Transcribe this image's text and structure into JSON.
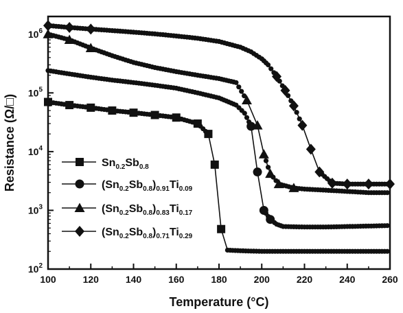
{
  "chart_data": {
    "type": "line",
    "xlabel": "Temperature (°C)",
    "ylabel": "Resistance (Ω/□)",
    "xlim": [
      100,
      260
    ],
    "ylim_log": [
      100,
      2000000
    ],
    "yscale": "log",
    "xticks": [
      100,
      120,
      140,
      160,
      180,
      200,
      220,
      240,
      260
    ],
    "xtick_labels": [
      "100",
      "120",
      "140",
      "160",
      "180",
      "200",
      "220",
      "240",
      "260"
    ],
    "yticks": [
      100,
      1000,
      10000,
      100000,
      1000000
    ],
    "ytick_labels": [
      {
        "base": "10",
        "exp": "2"
      },
      {
        "base": "10",
        "exp": "3"
      },
      {
        "base": "10",
        "exp": "4"
      },
      {
        "base": "10",
        "exp": "5"
      },
      {
        "base": "10",
        "exp": "6"
      }
    ],
    "grid": false,
    "legend_position": "left-bottom",
    "series": [
      {
        "name": "Sn0.2Sb0.8",
        "legend_parts": [
          {
            "t": "Sn"
          },
          {
            "t": "0.2",
            "sub": true
          },
          {
            "t": "Sb"
          },
          {
            "t": "0.8",
            "sub": true
          }
        ],
        "marker": "square",
        "x": [
          100,
          110,
          120,
          130,
          140,
          150,
          160,
          170,
          175,
          178,
          181,
          184,
          190,
          200,
          210,
          220,
          230,
          240,
          250,
          260
        ],
        "y": [
          70000,
          62000,
          56000,
          50000,
          46000,
          42000,
          38000,
          30000,
          20000,
          6000,
          480,
          210,
          205,
          200,
          200,
          200,
          200,
          200,
          200,
          200
        ],
        "marked_x": [
          100,
          110,
          120,
          130,
          140,
          150,
          160,
          170,
          175,
          178,
          181
        ]
      },
      {
        "name": "(Sn0.2Sb0.8)0.91Ti0.09",
        "legend_parts": [
          {
            "t": "(Sn"
          },
          {
            "t": "0.2",
            "sub": true
          },
          {
            "t": "Sb"
          },
          {
            "t": "0.8",
            "sub": true
          },
          {
            "t": ")"
          },
          {
            "t": "0.91",
            "sub": true
          },
          {
            "t": "Ti"
          },
          {
            "t": "0.09",
            "sub": true
          }
        ],
        "marker": "circle",
        "x": [
          100,
          110,
          120,
          130,
          140,
          150,
          160,
          170,
          180,
          188,
          192,
          195,
          198,
          201,
          204,
          207,
          210,
          220,
          230,
          240,
          250,
          260
        ],
        "y": [
          240000,
          210000,
          185000,
          165000,
          150000,
          135000,
          120000,
          100000,
          82000,
          62000,
          45000,
          27000,
          4500,
          1000,
          700,
          580,
          530,
          520,
          520,
          530,
          540,
          550
        ],
        "marked_x": [
          195,
          198,
          201,
          204
        ]
      },
      {
        "name": "(Sn0.2Sb0.8)0.83Ti0.17",
        "legend_parts": [
          {
            "t": "(Sn"
          },
          {
            "t": "0.2",
            "sub": true
          },
          {
            "t": "Sb"
          },
          {
            "t": "0.8",
            "sub": true
          },
          {
            "t": ")"
          },
          {
            "t": "0.83",
            "sub": true
          },
          {
            "t": "Ti"
          },
          {
            "t": "0.17",
            "sub": true
          }
        ],
        "marker": "triangle",
        "x": [
          100,
          110,
          120,
          130,
          140,
          150,
          160,
          170,
          180,
          188,
          193,
          198,
          201,
          204,
          208,
          215,
          220,
          230,
          240,
          250,
          260
        ],
        "y": [
          1000000,
          800000,
          580000,
          430000,
          330000,
          270000,
          230000,
          200000,
          175000,
          150000,
          75000,
          28000,
          9000,
          4200,
          2800,
          2400,
          2300,
          2200,
          2100,
          2000,
          2000
        ],
        "marked_x": [
          100,
          110,
          120,
          193,
          198,
          201,
          204,
          208,
          215
        ]
      },
      {
        "name": "(Sn0.2Sb0.8)0.71Ti0.29",
        "legend_parts": [
          {
            "t": "(Sn"
          },
          {
            "t": "0.2",
            "sub": true
          },
          {
            "t": "Sb"
          },
          {
            "t": "0.8",
            "sub": true
          },
          {
            "t": ")"
          },
          {
            "t": "0.71",
            "sub": true
          },
          {
            "t": "Ti"
          },
          {
            "t": "0.29",
            "sub": true
          }
        ],
        "marker": "diamond",
        "x": [
          100,
          110,
          120,
          130,
          140,
          150,
          160,
          170,
          180,
          190,
          195,
          200,
          203,
          207,
          211,
          215,
          219,
          223,
          227,
          233,
          240,
          250,
          260
        ],
        "y": [
          1400000,
          1300000,
          1220000,
          1150000,
          1080000,
          1010000,
          930000,
          850000,
          750000,
          600000,
          500000,
          380000,
          300000,
          190000,
          110000,
          60000,
          28000,
          11000,
          4500,
          2900,
          2800,
          2800,
          2800
        ],
        "marked_x": [
          100,
          110,
          120,
          207,
          211,
          215,
          219,
          223,
          227,
          233,
          240,
          250,
          260
        ]
      }
    ]
  }
}
